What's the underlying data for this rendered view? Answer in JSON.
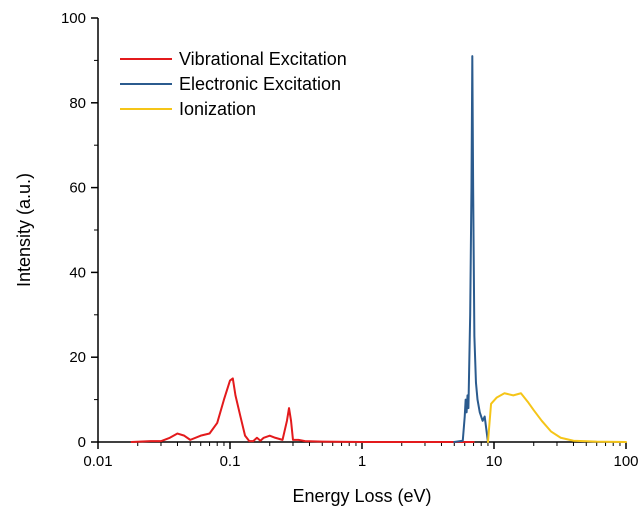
{
  "chart_data": {
    "type": "line",
    "title": "",
    "xlabel": "Energy Loss (eV)",
    "ylabel": "Intensity (a.u.)",
    "x_scale": "log",
    "xlim": [
      0.01,
      100
    ],
    "ylim": [
      0,
      100
    ],
    "x_ticks": [
      "0.01",
      "0.1",
      "1",
      "10",
      "100"
    ],
    "y_ticks": [
      "0",
      "20",
      "40",
      "60",
      "80",
      "100"
    ],
    "grid": false,
    "legend_position": "top-left",
    "series": [
      {
        "name": "Vibrational Excitation",
        "color": "#e31a1c",
        "points": [
          [
            0.018,
            0
          ],
          [
            0.025,
            0.2
          ],
          [
            0.03,
            0.2
          ],
          [
            0.035,
            1.0
          ],
          [
            0.04,
            2.0
          ],
          [
            0.045,
            1.5
          ],
          [
            0.05,
            0.5
          ],
          [
            0.06,
            1.5
          ],
          [
            0.07,
            2.0
          ],
          [
            0.08,
            4.5
          ],
          [
            0.09,
            10
          ],
          [
            0.1,
            14.5
          ],
          [
            0.105,
            15.0
          ],
          [
            0.11,
            11
          ],
          [
            0.12,
            6
          ],
          [
            0.13,
            1.5
          ],
          [
            0.14,
            0.2
          ],
          [
            0.15,
            0.2
          ],
          [
            0.16,
            1.0
          ],
          [
            0.17,
            0.3
          ],
          [
            0.18,
            1.0
          ],
          [
            0.2,
            1.5
          ],
          [
            0.22,
            1.0
          ],
          [
            0.25,
            0.5
          ],
          [
            0.27,
            5
          ],
          [
            0.28,
            8
          ],
          [
            0.29,
            5
          ],
          [
            0.3,
            0.5
          ],
          [
            0.33,
            0.5
          ],
          [
            0.37,
            0.2
          ],
          [
            0.5,
            0.1
          ],
          [
            1.0,
            0
          ],
          [
            3.0,
            0
          ],
          [
            7.0,
            0
          ]
        ]
      },
      {
        "name": "Electronic Excitation",
        "color": "#2b5b8e",
        "points": [
          [
            5.0,
            0
          ],
          [
            5.8,
            0.3
          ],
          [
            6.0,
            6
          ],
          [
            6.1,
            10
          ],
          [
            6.2,
            7
          ],
          [
            6.3,
            11
          ],
          [
            6.4,
            8
          ],
          [
            6.6,
            30
          ],
          [
            6.75,
            60
          ],
          [
            6.85,
            91
          ],
          [
            6.95,
            60
          ],
          [
            7.1,
            25
          ],
          [
            7.3,
            14
          ],
          [
            7.5,
            10
          ],
          [
            7.8,
            7
          ],
          [
            8.2,
            5
          ],
          [
            8.5,
            6
          ],
          [
            9.0,
            0
          ]
        ]
      },
      {
        "name": "Ionization",
        "color": "#f5c518",
        "points": [
          [
            9.0,
            0
          ],
          [
            9.5,
            9
          ],
          [
            10.5,
            10.5
          ],
          [
            12,
            11.5
          ],
          [
            14,
            11
          ],
          [
            16,
            11.5
          ],
          [
            18,
            9.5
          ],
          [
            20,
            7.5
          ],
          [
            23,
            5
          ],
          [
            27,
            2.5
          ],
          [
            32,
            1.0
          ],
          [
            40,
            0.3
          ],
          [
            60,
            0.1
          ],
          [
            100,
            0
          ]
        ]
      }
    ]
  }
}
